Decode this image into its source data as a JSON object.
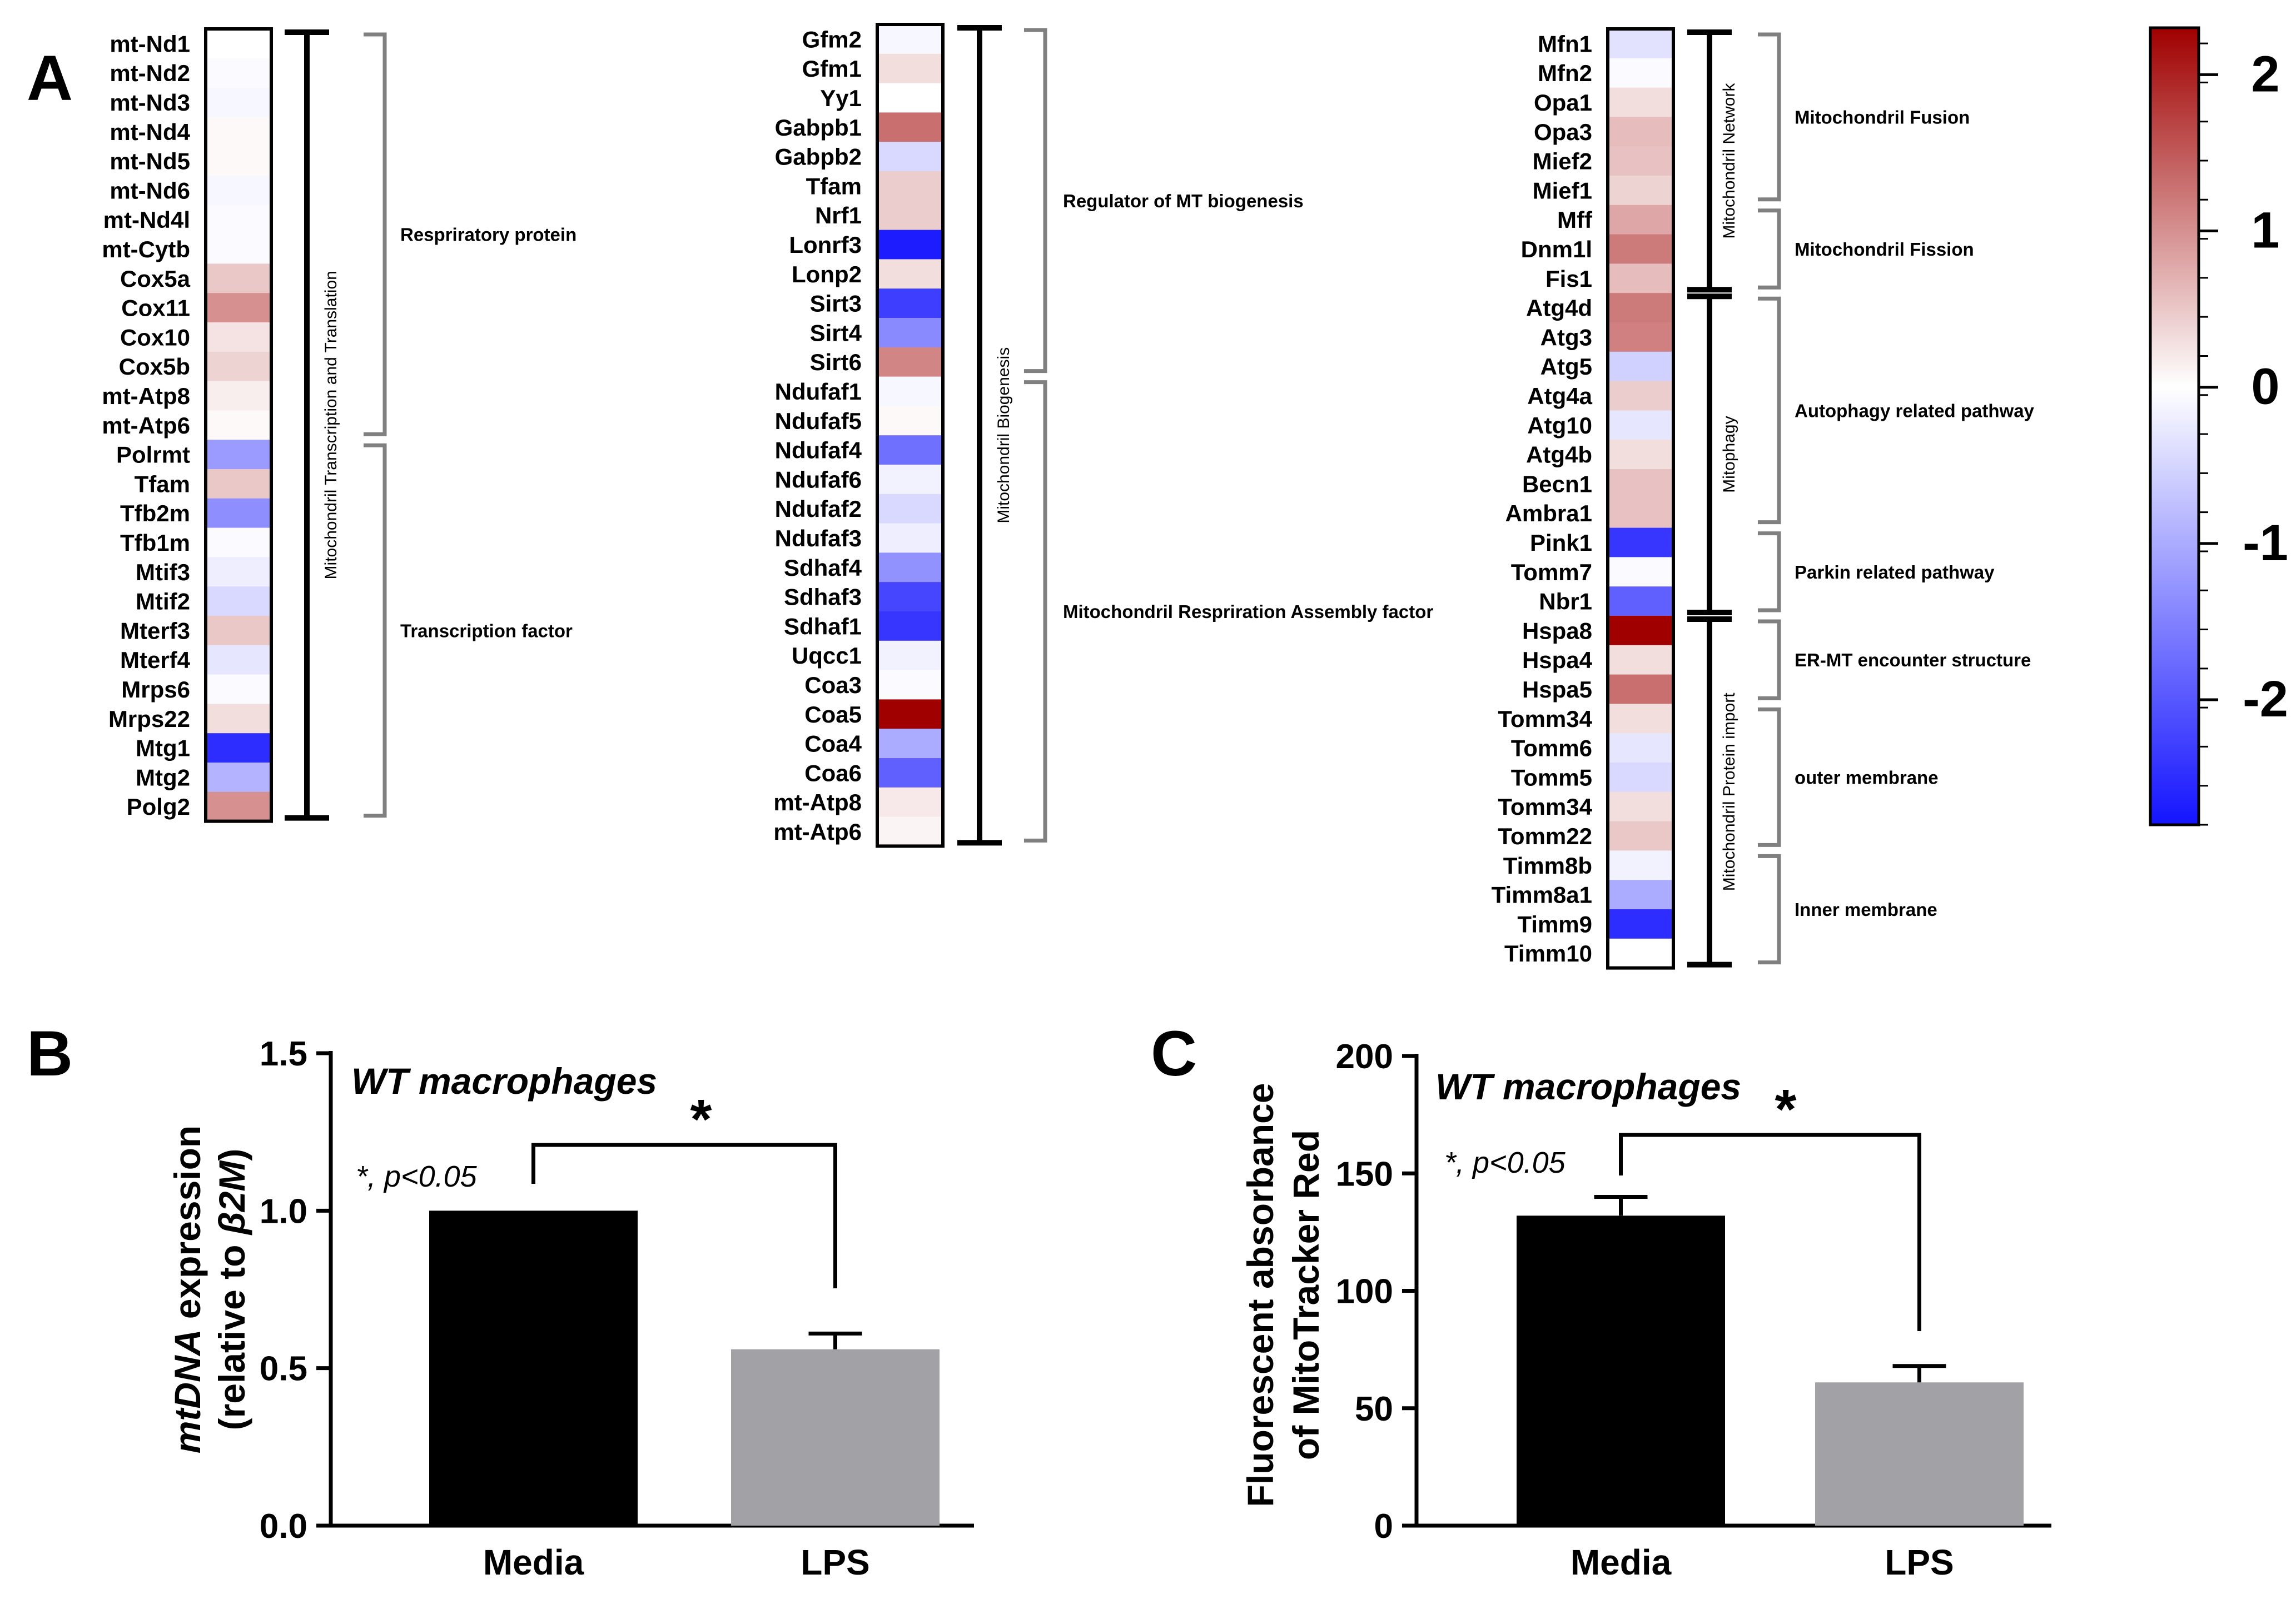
{
  "panel_labels": {
    "a": "A",
    "b": "B",
    "c": "C"
  },
  "colors": {
    "neg": "#1414ff",
    "mid": "#ffffff",
    "pos": "#a00000",
    "bracket": "#808080",
    "bar_media": "#000000",
    "bar_lps": "#a2a1a6"
  },
  "colorbar": {
    "vmin": -2.8,
    "vmax": 2.3,
    "ticks": [
      2,
      1,
      0,
      -1,
      -2
    ]
  },
  "chart_data": [
    {
      "type": "heatmap",
      "panel": "A",
      "columns": [
        {
          "rows": [
            {
              "gene": "mt-Nd1",
              "value": 0.0
            },
            {
              "gene": "mt-Nd2",
              "value": -0.05
            },
            {
              "gene": "mt-Nd3",
              "value": -0.1
            },
            {
              "gene": "mt-Nd4",
              "value": 0.05
            },
            {
              "gene": "mt-Nd5",
              "value": 0.05
            },
            {
              "gene": "mt-Nd6",
              "value": -0.1
            },
            {
              "gene": "mt-Nd4l",
              "value": -0.05
            },
            {
              "gene": "mt-Cytb",
              "value": -0.05
            },
            {
              "gene": "Cox5a",
              "value": 0.5
            },
            {
              "gene": "Cox11",
              "value": 1.0
            },
            {
              "gene": "Cox10",
              "value": 0.25
            },
            {
              "gene": "Cox5b",
              "value": 0.4
            },
            {
              "gene": "mt-Atp8",
              "value": 0.15
            },
            {
              "gene": "mt-Atp6",
              "value": 0.05
            },
            {
              "gene": "Polrmt",
              "value": -1.2
            },
            {
              "gene": "Tfam",
              "value": 0.5
            },
            {
              "gene": "Tfb2m",
              "value": -1.35
            },
            {
              "gene": "Tfb1m",
              "value": -0.05
            },
            {
              "gene": "Mtif3",
              "value": -0.2
            },
            {
              "gene": "Mtif2",
              "value": -0.45
            },
            {
              "gene": "Mterf3",
              "value": 0.5
            },
            {
              "gene": "Mterf4",
              "value": -0.3
            },
            {
              "gene": "Mrps6",
              "value": -0.05
            },
            {
              "gene": "Mrps22",
              "value": 0.3
            },
            {
              "gene": "Mtg1",
              "value": -2.5
            },
            {
              "gene": "Mtg2",
              "value": -0.9
            },
            {
              "gene": "Polg2",
              "value": 1.0
            }
          ],
          "groups": [
            {
              "label": "Respriratory protein",
              "start": 0,
              "end": 13
            },
            {
              "label": "Transcription factor",
              "start": 14,
              "end": 26
            }
          ],
          "category": {
            "label": "Mitochondril Transcription and Translation",
            "start": 0,
            "end": 26
          }
        },
        {
          "rows": [
            {
              "gene": "Gfm2",
              "value": -0.1
            },
            {
              "gene": "Gfm1",
              "value": 0.3
            },
            {
              "gene": "Yy1",
              "value": 0.0
            },
            {
              "gene": "Gabpb1",
              "value": 1.3
            },
            {
              "gene": "Gabpb2",
              "value": -0.45
            },
            {
              "gene": "Tfam",
              "value": 0.45
            },
            {
              "gene": "Nrf1",
              "value": 0.45
            },
            {
              "gene": "Lonrf3",
              "value": -2.7
            },
            {
              "gene": "Lonp2",
              "value": 0.3
            },
            {
              "gene": "Sirt3",
              "value": -2.3
            },
            {
              "gene": "Sirt4",
              "value": -1.4
            },
            {
              "gene": "Sirt6",
              "value": 1.1
            },
            {
              "gene": "Ndufaf1",
              "value": -0.1
            },
            {
              "gene": "Ndufaf5",
              "value": 0.05
            },
            {
              "gene": "Ndufaf4",
              "value": -1.7
            },
            {
              "gene": "Ndufaf6",
              "value": -0.15
            },
            {
              "gene": "Ndufaf2",
              "value": -0.45
            },
            {
              "gene": "Ndufaf3",
              "value": -0.2
            },
            {
              "gene": "Sdhaf4",
              "value": -1.3
            },
            {
              "gene": "Sdhaf3",
              "value": -2.2
            },
            {
              "gene": "Sdhaf1",
              "value": -2.4
            },
            {
              "gene": "Uqcc1",
              "value": -0.15
            },
            {
              "gene": "Coa3",
              "value": -0.05
            },
            {
              "gene": "Coa5",
              "value": 2.3
            },
            {
              "gene": "Coa4",
              "value": -1.0
            },
            {
              "gene": "Coa6",
              "value": -1.9
            },
            {
              "gene": "mt-Atp8",
              "value": 0.2
            },
            {
              "gene": "mt-Atp6",
              "value": 0.1
            }
          ],
          "groups": [
            {
              "label": "Regulator of MT biogenesis",
              "start": 0,
              "end": 11
            },
            {
              "label": "Mitochondril Respriration Assembly factor",
              "start": 12,
              "end": 27
            }
          ],
          "category": {
            "label": "Mitochondril Biogenesis",
            "start": 0,
            "end": 27
          }
        },
        {
          "rows": [
            {
              "gene": "Mfn1",
              "value": -0.35
            },
            {
              "gene": "Mfn2",
              "value": -0.05
            },
            {
              "gene": "Opa1",
              "value": 0.3
            },
            {
              "gene": "Opa3",
              "value": 0.6
            },
            {
              "gene": "Mief2",
              "value": 0.55
            },
            {
              "gene": "Mief1",
              "value": 0.4
            },
            {
              "gene": "Mff",
              "value": 0.8
            },
            {
              "gene": "Dnm1l",
              "value": 1.2
            },
            {
              "gene": "Fis1",
              "value": 0.6
            },
            {
              "gene": "Atg4d",
              "value": 1.2
            },
            {
              "gene": "Atg3",
              "value": 1.15
            },
            {
              "gene": "Atg5",
              "value": -0.55
            },
            {
              "gene": "Atg4a",
              "value": 0.45
            },
            {
              "gene": "Atg10",
              "value": -0.3
            },
            {
              "gene": "Atg4b",
              "value": 0.3
            },
            {
              "gene": "Becn1",
              "value": 0.55
            },
            {
              "gene": "Ambra1",
              "value": 0.55
            },
            {
              "gene": "Pink1",
              "value": -2.4
            },
            {
              "gene": "Tomm7",
              "value": -0.05
            },
            {
              "gene": "Nbr1",
              "value": -1.9
            },
            {
              "gene": "Hspa8",
              "value": 2.3
            },
            {
              "gene": "Hspa4",
              "value": 0.3
            },
            {
              "gene": "Hspa5",
              "value": 1.3
            },
            {
              "gene": "Tomm34",
              "value": 0.3
            },
            {
              "gene": "Tomm6",
              "value": -0.3
            },
            {
              "gene": "Tomm5",
              "value": -0.45
            },
            {
              "gene": "Tomm34",
              "value": 0.3
            },
            {
              "gene": "Tomm22",
              "value": 0.5
            },
            {
              "gene": "Timm8b",
              "value": -0.15
            },
            {
              "gene": "Timm8a1",
              "value": -1.0
            },
            {
              "gene": "Timm9",
              "value": -2.5
            },
            {
              "gene": "Timm10",
              "value": 0.0
            }
          ],
          "groups": [
            {
              "label": "Mitochondril Fusion",
              "start": 0,
              "end": 5
            },
            {
              "label": "Mitochondril Fission",
              "start": 6,
              "end": 8
            },
            {
              "label": "Autophagy related pathway",
              "start": 9,
              "end": 16
            },
            {
              "label": "Parkin related pathway",
              "start": 17,
              "end": 19
            },
            {
              "label": "ER-MT encounter structure",
              "start": 20,
              "end": 22
            },
            {
              "label": "outer membrane",
              "start": 23,
              "end": 27
            },
            {
              "label": "Inner membrane",
              "start": 28,
              "end": 31
            }
          ],
          "categories": [
            {
              "label": "Mitochondril Network",
              "start": 0,
              "end": 8
            },
            {
              "label": "Mitophagy",
              "start": 9,
              "end": 19
            },
            {
              "label": "Mitochondril Protein import",
              "start": 20,
              "end": 31
            }
          ]
        }
      ]
    },
    {
      "type": "bar",
      "panel": "B",
      "title": "WT macrophages",
      "annotation": "*, p<0.05",
      "significance": "*",
      "ylabel_italic": "mtDNA",
      "ylabel_rest": " expression",
      "ylabel_line2_prefix": "(relative to ",
      "ylabel_line2_italic": "β2M",
      "ylabel_line2_suffix": ")",
      "categories": [
        "Media",
        "LPS"
      ],
      "values": [
        1.0,
        0.56
      ],
      "errors": [
        0.0,
        0.05
      ],
      "ylim": [
        0,
        1.5
      ],
      "ticks": [
        "0.0",
        "0.5",
        "1.0",
        "1.5"
      ],
      "tick_values": [
        0,
        0.5,
        1.0,
        1.5
      ]
    },
    {
      "type": "bar",
      "panel": "C",
      "title": "WT macrophages",
      "annotation": "*, p<0.05",
      "significance": "*",
      "ylabel_line1": "Fluorescent absorbance",
      "ylabel_line2": "of MitoTracker Red",
      "categories": [
        "Media",
        "LPS"
      ],
      "values": [
        132,
        61
      ],
      "errors": [
        8,
        7
      ],
      "ylim": [
        0,
        200
      ],
      "ticks": [
        "0",
        "50",
        "100",
        "150",
        "200"
      ],
      "tick_values": [
        0,
        50,
        100,
        150,
        200
      ]
    }
  ]
}
